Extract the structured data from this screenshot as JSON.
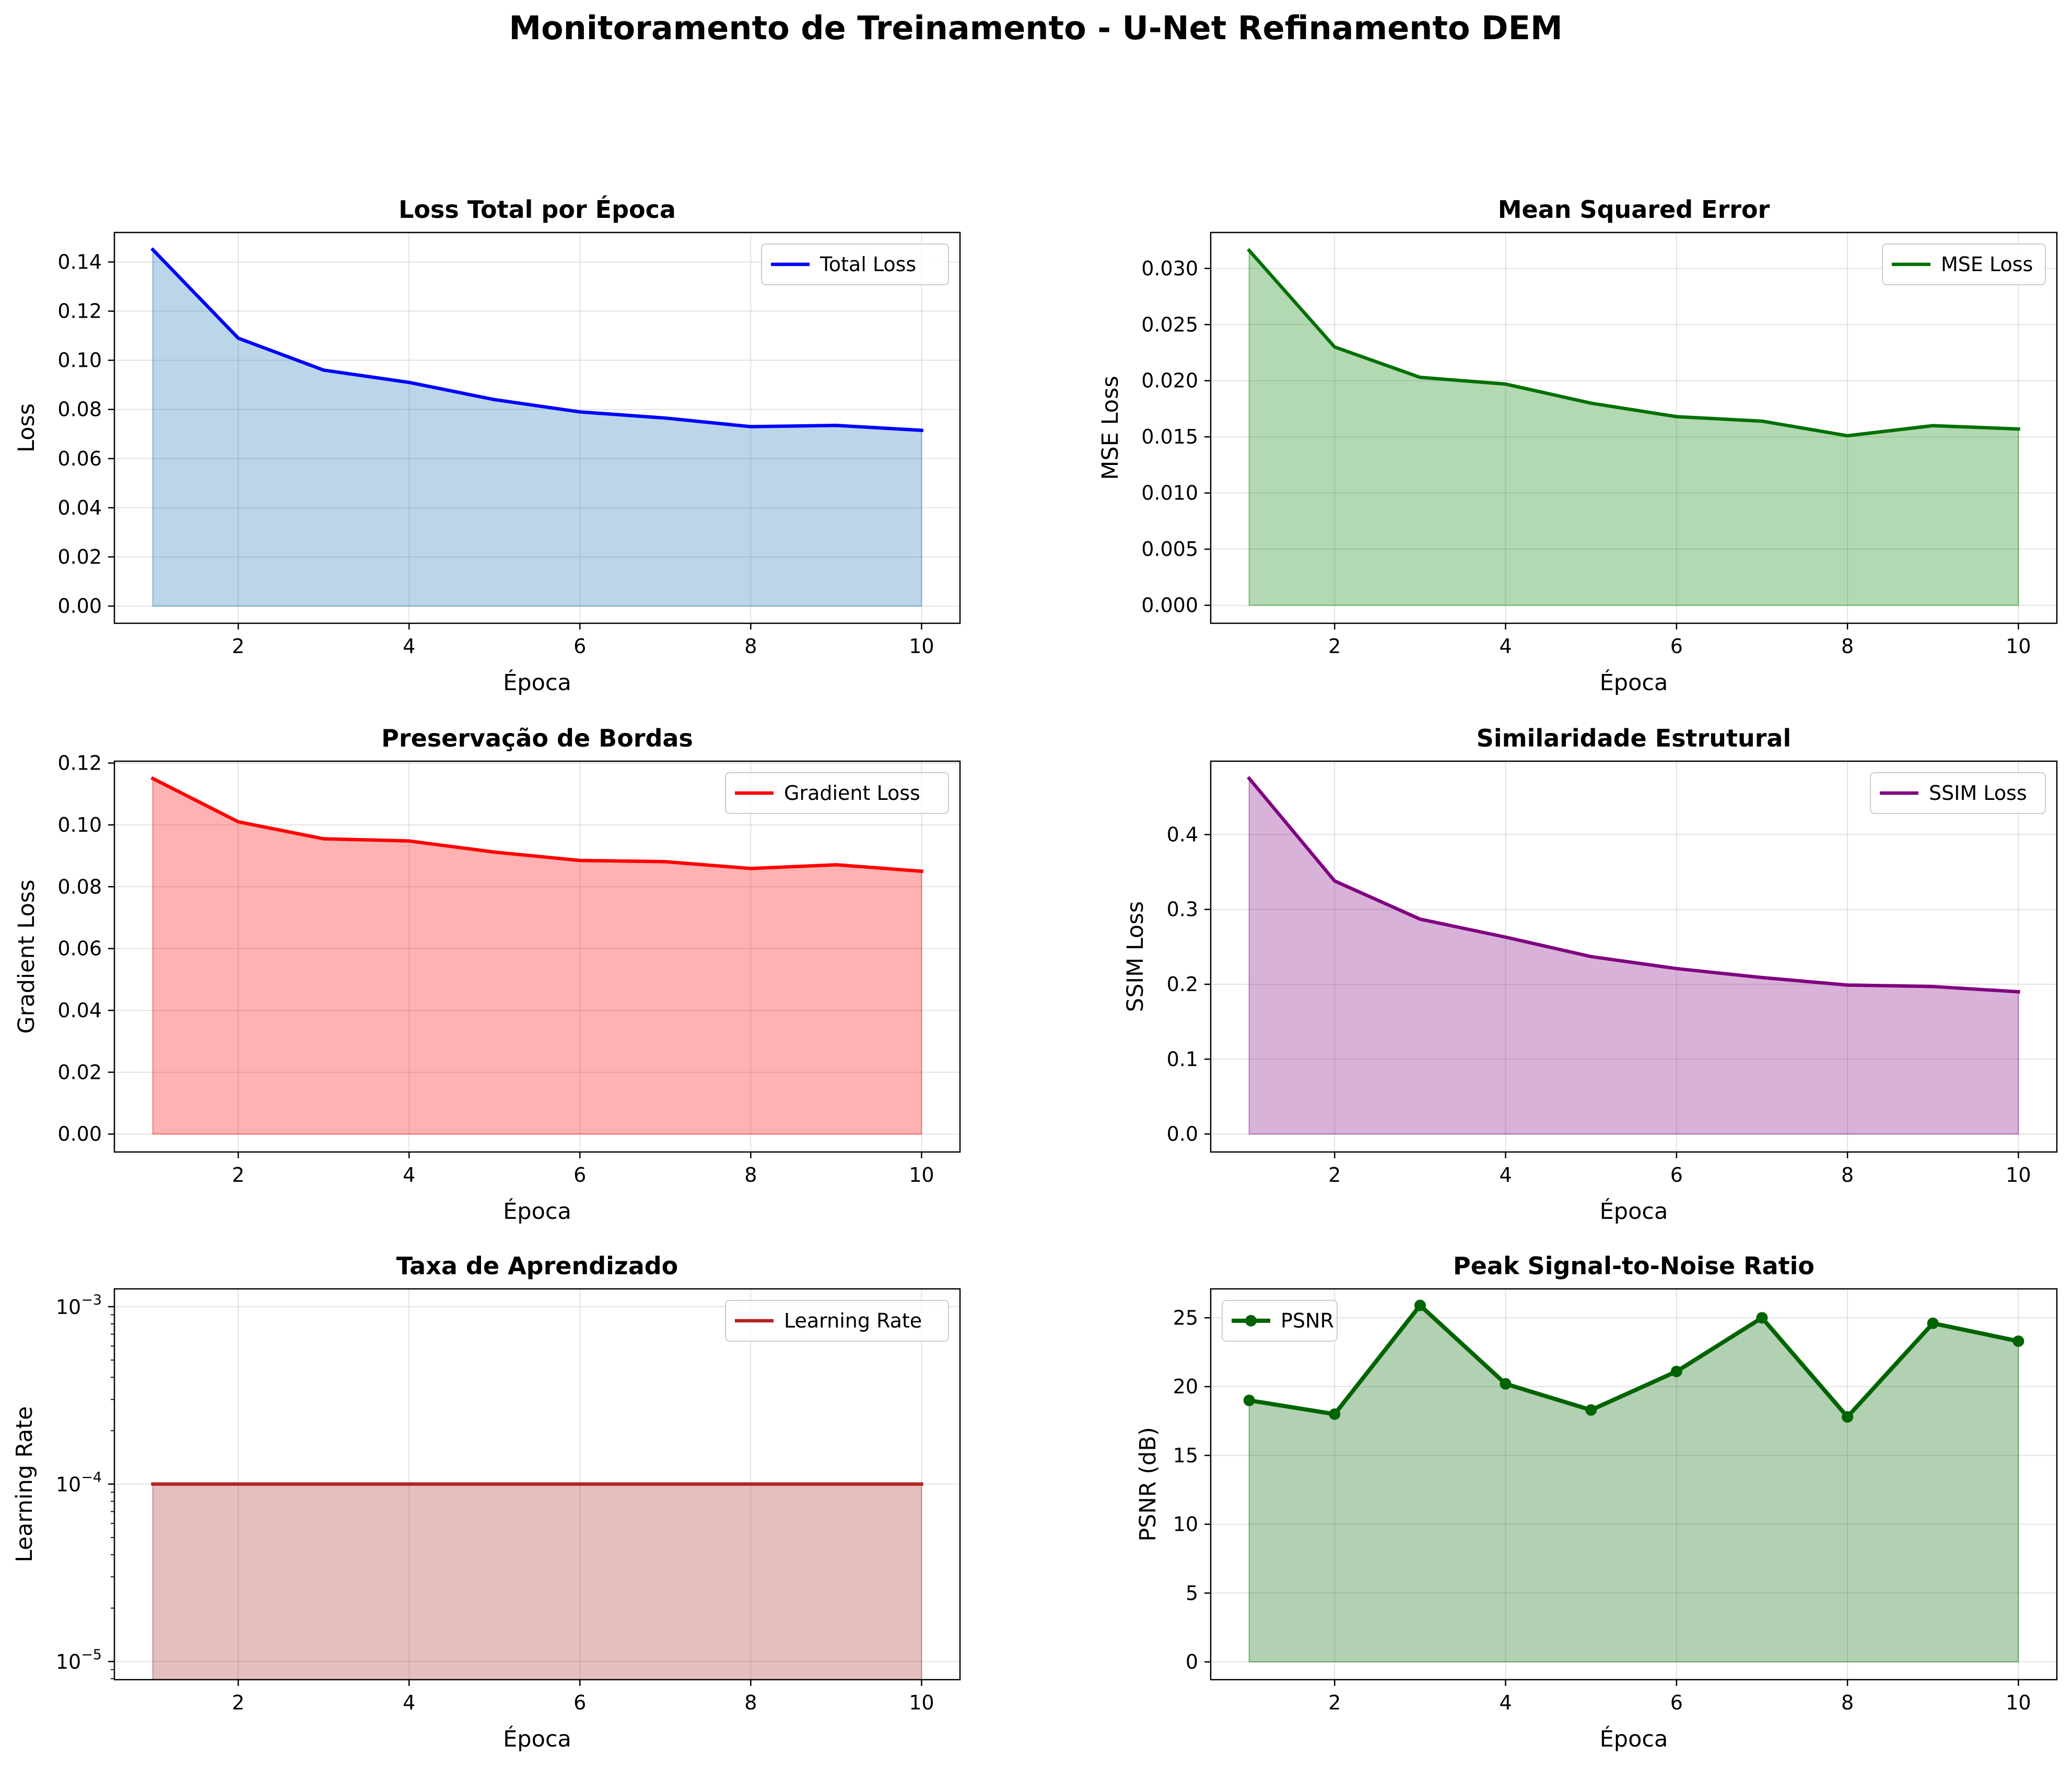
{
  "figure": {
    "title": "Monitoramento de Treinamento - U-Net Refinamento DEM"
  },
  "chart_data": [
    {
      "type": "area",
      "title": "Loss Total por Época",
      "xlabel": "Época",
      "ylabel": "Loss",
      "x": [
        1,
        2,
        3,
        4,
        5,
        6,
        7,
        8,
        9,
        10
      ],
      "xticks": [
        2,
        4,
        6,
        8,
        10
      ],
      "xlim": [
        0.55,
        10.45
      ],
      "ylim": [
        -0.007,
        0.152
      ],
      "yticks": [
        0,
        0.02,
        0.04,
        0.06,
        0.08,
        0.1,
        0.12,
        0.14
      ],
      "ytick_labels": [
        "0.00",
        "0.02",
        "0.04",
        "0.06",
        "0.08",
        "0.10",
        "0.12",
        "0.14"
      ],
      "grid": true,
      "legend_position": "upper right",
      "series": [
        {
          "name": "Total Loss",
          "values": [
            0.145,
            0.109,
            0.096,
            0.091,
            0.084,
            0.079,
            0.0765,
            0.073,
            0.0735,
            0.0715
          ],
          "line_color": "#0000ff",
          "fill_color": "#1f77b4",
          "fill_opacity": 0.3,
          "markers": false
        }
      ]
    },
    {
      "type": "area",
      "title": "Mean Squared Error",
      "xlabel": "Época",
      "ylabel": "MSE Loss",
      "x": [
        1,
        2,
        3,
        4,
        5,
        6,
        7,
        8,
        9,
        10
      ],
      "xticks": [
        2,
        4,
        6,
        8,
        10
      ],
      "xlim": [
        0.55,
        10.45
      ],
      "ylim": [
        -0.0016,
        0.0332
      ],
      "yticks": [
        0,
        0.005,
        0.01,
        0.015,
        0.02,
        0.025,
        0.03
      ],
      "ytick_labels": [
        "0.000",
        "0.005",
        "0.010",
        "0.015",
        "0.020",
        "0.025",
        "0.030"
      ],
      "grid": true,
      "legend_position": "upper right",
      "series": [
        {
          "name": "MSE Loss",
          "values": [
            0.0316,
            0.023,
            0.0203,
            0.0197,
            0.018,
            0.0168,
            0.0164,
            0.0151,
            0.016,
            0.0157
          ],
          "line_color": "#007000",
          "fill_color": "#008000",
          "fill_opacity": 0.3,
          "markers": false
        }
      ]
    },
    {
      "type": "area",
      "title": "Preservação de Bordas",
      "xlabel": "Época",
      "ylabel": "Gradient Loss",
      "x": [
        1,
        2,
        3,
        4,
        5,
        6,
        7,
        8,
        9,
        10
      ],
      "xticks": [
        2,
        4,
        6,
        8,
        10
      ],
      "xlim": [
        0.55,
        10.45
      ],
      "ylim": [
        -0.0058,
        0.1206
      ],
      "yticks": [
        0,
        0.02,
        0.04,
        0.06,
        0.08,
        0.1,
        0.12
      ],
      "ytick_labels": [
        "0.00",
        "0.02",
        "0.04",
        "0.06",
        "0.08",
        "0.10",
        "0.12"
      ],
      "grid": true,
      "legend_position": "upper right",
      "series": [
        {
          "name": "Gradient Loss",
          "values": [
            0.115,
            0.101,
            0.0955,
            0.0948,
            0.0912,
            0.0885,
            0.0881,
            0.0859,
            0.0871,
            0.085
          ],
          "line_color": "#ff0000",
          "fill_color": "#ff0000",
          "fill_opacity": 0.3,
          "markers": false
        }
      ]
    },
    {
      "type": "area",
      "title": "Similaridade Estrutural",
      "xlabel": "Época",
      "ylabel": "SSIM Loss",
      "x": [
        1,
        2,
        3,
        4,
        5,
        6,
        7,
        8,
        9,
        10
      ],
      "xticks": [
        2,
        4,
        6,
        8,
        10
      ],
      "xlim": [
        0.55,
        10.45
      ],
      "ylim": [
        -0.024,
        0.498
      ],
      "yticks": [
        0,
        0.1,
        0.2,
        0.3,
        0.4
      ],
      "ytick_labels": [
        "0.0",
        "0.1",
        "0.2",
        "0.3",
        "0.4"
      ],
      "grid": true,
      "legend_position": "upper right",
      "series": [
        {
          "name": "SSIM Loss",
          "values": [
            0.475,
            0.338,
            0.287,
            0.263,
            0.237,
            0.221,
            0.209,
            0.199,
            0.197,
            0.19
          ],
          "line_color": "#800080",
          "fill_color": "#800080",
          "fill_opacity": 0.3,
          "markers": false
        }
      ]
    },
    {
      "type": "area",
      "title": "Taxa de Aprendizado",
      "xlabel": "Época",
      "ylabel": "Learning Rate",
      "x": [
        1,
        2,
        3,
        4,
        5,
        6,
        7,
        8,
        9,
        10
      ],
      "xticks": [
        2,
        4,
        6,
        8,
        10
      ],
      "xlim": [
        0.55,
        10.45
      ],
      "yscale": "log",
      "ylim": [
        7.9e-06,
        0.00126
      ],
      "yticks": [
        1e-05,
        0.0001,
        0.001
      ],
      "ytick_labels": [
        {
          "base": "10",
          "exp": "−5"
        },
        {
          "base": "10",
          "exp": "−4"
        },
        {
          "base": "10",
          "exp": "−3"
        }
      ],
      "grid": true,
      "legend_position": "upper right",
      "series": [
        {
          "name": "Learning Rate",
          "values": [
            0.0001,
            0.0001,
            0.0001,
            0.0001,
            0.0001,
            0.0001,
            0.0001,
            0.0001,
            0.0001,
            0.0001
          ],
          "line_color": "#b22222",
          "fill_color": "#a52a2a",
          "fill_opacity": 0.3,
          "markers": false
        }
      ]
    },
    {
      "type": "area",
      "title": "Peak Signal-to-Noise Ratio",
      "xlabel": "Época",
      "ylabel": "PSNR (dB)",
      "x": [
        1,
        2,
        3,
        4,
        5,
        6,
        7,
        8,
        9,
        10
      ],
      "xticks": [
        2,
        4,
        6,
        8,
        10
      ],
      "xlim": [
        0.55,
        10.45
      ],
      "ylim": [
        -1.29,
        27.1
      ],
      "yticks": [
        0,
        5,
        10,
        15,
        20,
        25
      ],
      "ytick_labels": [
        "0",
        "5",
        "10",
        "15",
        "20",
        "25"
      ],
      "grid": true,
      "legend_position": "upper left",
      "series": [
        {
          "name": "PSNR",
          "values": [
            19.0,
            18.0,
            25.9,
            20.2,
            18.3,
            21.1,
            25.0,
            17.8,
            24.6,
            23.3
          ],
          "line_color": "#006400",
          "fill_color": "#006400",
          "fill_opacity": 0.3,
          "markers": true
        }
      ]
    }
  ]
}
